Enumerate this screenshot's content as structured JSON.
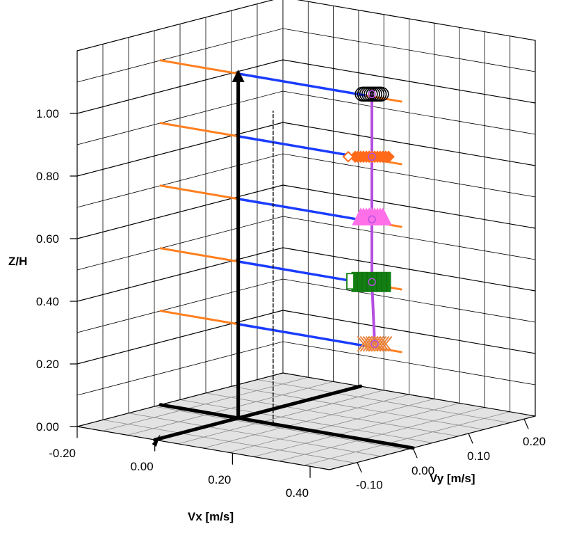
{
  "chart_data": {
    "type": "scatter",
    "projection": "3d",
    "title": "",
    "xlabel": "Vx [m/s]",
    "ylabel": "Vy [m/s]",
    "zlabel": "Z/H",
    "xlim": [
      -0.2,
      0.45
    ],
    "ylim": [
      -0.15,
      0.22
    ],
    "zlim": [
      0,
      1.2
    ],
    "x_ticks": [
      "-0.20",
      "0.00",
      "0.20",
      "0.40"
    ],
    "y_ticks": [
      "-0.10",
      "0.00",
      "0.10",
      "0.20"
    ],
    "z_ticks": [
      "0.00",
      "0.20",
      "0.40",
      "0.60",
      "0.80",
      "1.00"
    ],
    "grid": true,
    "floor_color": "#e3e3e3",
    "reference_lines": {
      "z_levels": [
        0.3,
        0.5,
        0.7,
        0.9,
        1.1
      ],
      "outer_color": "#ff7f1e",
      "inner_color": "#1a3cff"
    },
    "series": [
      {
        "z": 0.3,
        "vx": 0.33,
        "vy": 0.015,
        "color": "#e9823c",
        "marker": "x-cross"
      },
      {
        "z": 0.5,
        "vx": 0.33,
        "vy": 0.01,
        "color": "#137f13",
        "marker": "square"
      },
      {
        "z": 0.7,
        "vx": 0.33,
        "vy": 0.01,
        "color": "#ff6fe8",
        "marker": "triangle"
      },
      {
        "z": 0.9,
        "vx": 0.33,
        "vy": 0.01,
        "color": "#ff6a1a",
        "marker": "diamond"
      },
      {
        "z": 1.1,
        "vx": 0.33,
        "vy": 0.01,
        "color": "#000000",
        "marker": "circle"
      }
    ],
    "profile_color": "#b44ee0",
    "axes_color": "#000000"
  }
}
